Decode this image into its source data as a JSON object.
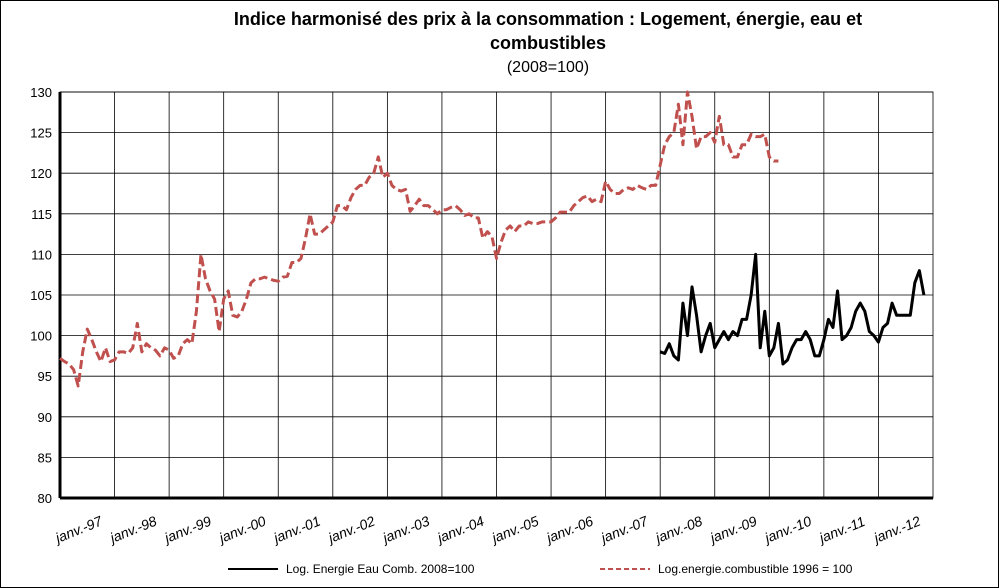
{
  "chart_data": {
    "type": "line",
    "title": [
      "Indice harmonisé des prix à la consommation : Logement, énergie, eau  et",
      "combustibles"
    ],
    "subtitle": "(2008=100)",
    "categories": [
      "janv.-97",
      null,
      null,
      null,
      null,
      null,
      null,
      null,
      null,
      null,
      null,
      null,
      "janv.-98",
      null,
      null,
      null,
      null,
      null,
      null,
      null,
      null,
      null,
      null,
      null,
      "janv.-99",
      null,
      null,
      null,
      null,
      null,
      null,
      null,
      null,
      null,
      null,
      null,
      "janv.-00",
      null,
      null,
      null,
      null,
      null,
      null,
      null,
      null,
      null,
      null,
      null,
      "janv.-01",
      null,
      null,
      null,
      null,
      null,
      null,
      null,
      null,
      null,
      null,
      null,
      "janv.-02",
      null,
      null,
      null,
      null,
      null,
      null,
      null,
      null,
      null,
      null,
      null,
      "janv.-03",
      null,
      null,
      null,
      null,
      null,
      null,
      null,
      null,
      null,
      null,
      null,
      "janv.-04",
      null,
      null,
      null,
      null,
      null,
      null,
      null,
      null,
      null,
      null,
      null,
      "janv.-05",
      null,
      null,
      null,
      null,
      null,
      null,
      null,
      null,
      null,
      null,
      null,
      "janv.-06",
      null,
      null,
      null,
      null,
      null,
      null,
      null,
      null,
      null,
      null,
      null,
      "janv.-07",
      null,
      null,
      null,
      null,
      null,
      null,
      null,
      null,
      null,
      null,
      null,
      "janv.-08",
      null,
      null,
      null,
      null,
      null,
      null,
      null,
      null,
      null,
      null,
      null,
      "janv.-09",
      null,
      null,
      null,
      null,
      null,
      null,
      null,
      null,
      null,
      null,
      null,
      "janv.-10",
      null,
      null,
      null,
      null,
      null,
      null,
      null,
      null,
      null,
      null,
      null,
      "janv.-11",
      null,
      null,
      null,
      null,
      null,
      null,
      null,
      null,
      null,
      null,
      null,
      "janv.-12",
      null,
      null,
      null,
      null,
      null,
      null,
      null,
      null,
      null,
      null,
      null
    ],
    "series": [
      {
        "name": "Log. Energie Eau Comb. 2008=100",
        "color": "#000000",
        "dash": false,
        "values": [
          null,
          null,
          null,
          null,
          null,
          null,
          null,
          null,
          null,
          null,
          null,
          null,
          null,
          null,
          null,
          null,
          null,
          null,
          null,
          null,
          null,
          null,
          null,
          null,
          null,
          null,
          null,
          null,
          null,
          null,
          null,
          null,
          null,
          null,
          null,
          null,
          null,
          null,
          null,
          null,
          null,
          null,
          null,
          null,
          null,
          null,
          null,
          null,
          null,
          null,
          null,
          null,
          null,
          null,
          null,
          null,
          null,
          null,
          null,
          null,
          null,
          null,
          null,
          null,
          null,
          null,
          null,
          null,
          null,
          null,
          null,
          null,
          null,
          null,
          null,
          null,
          null,
          null,
          null,
          null,
          null,
          null,
          null,
          null,
          null,
          null,
          null,
          null,
          null,
          null,
          null,
          null,
          null,
          null,
          null,
          null,
          null,
          null,
          null,
          null,
          null,
          null,
          null,
          null,
          null,
          null,
          null,
          null,
          null,
          null,
          null,
          null,
          null,
          null,
          null,
          null,
          null,
          null,
          null,
          null,
          null,
          null,
          null,
          null,
          null,
          null,
          null,
          null,
          null,
          null,
          null,
          null,
          98,
          97.8,
          99,
          97.5,
          97,
          104,
          100,
          106,
          102.5,
          98,
          100,
          101.5,
          98.5,
          99.5,
          100.5,
          99.5,
          100.5,
          100,
          102,
          102,
          105,
          110,
          98.5,
          103,
          97.5,
          98.5,
          101.5,
          96.5,
          97,
          98.5,
          99.5,
          99.5,
          100.5,
          99.5,
          97.5,
          97.5,
          99.5,
          102,
          101,
          105.5,
          99.5,
          100,
          101,
          103,
          104,
          103,
          100.5,
          100,
          99.2,
          101,
          101.5,
          104,
          102.5,
          102.5,
          102.5,
          102.5,
          106.5,
          108,
          105,
          null
        ]
      },
      {
        "name": "Log.energie.combustible 1996 = 100",
        "color": "#c0504d",
        "dash": true,
        "values": [
          97.2,
          96.8,
          96.5,
          95.8,
          93.8,
          98,
          100.8,
          99.5,
          98,
          96.8,
          98.5,
          96.8,
          97,
          98,
          98,
          97.8,
          98.5,
          101.5,
          98,
          99,
          98.5,
          98.2,
          97.5,
          98.5,
          98.2,
          97.2,
          97.5,
          99,
          99.5,
          99,
          103,
          110,
          107,
          105.5,
          104.5,
          100.5,
          104.5,
          105.5,
          102.5,
          102.3,
          103,
          104.5,
          106.5,
          107,
          107,
          107.2,
          107,
          106.8,
          106.7,
          107.2,
          107.3,
          109,
          109,
          109.5,
          112,
          115,
          112.5,
          112.5,
          113,
          113.5,
          114,
          116,
          116,
          115.5,
          117,
          118,
          118.5,
          118.5,
          119.5,
          120,
          122,
          119.5,
          120,
          118.5,
          118,
          117.8,
          118,
          115.3,
          116,
          116.8,
          116,
          116,
          115.5,
          115,
          115.5,
          115.5,
          115.8,
          116,
          115.5,
          114.8,
          115,
          114.5,
          114.5,
          112,
          112.8,
          112.2,
          109.5,
          111.5,
          113,
          113.5,
          112.8,
          113.5,
          113.5,
          114,
          113.8,
          113.8,
          114,
          114,
          114,
          114.5,
          115.2,
          115.2,
          115.2,
          116,
          116.5,
          117,
          117.2,
          116.5,
          116.8,
          116.5,
          119,
          118,
          117.5,
          117.5,
          118,
          118.2,
          118,
          118.5,
          118.2,
          118,
          118.5,
          118.5,
          121,
          123.5,
          124.5,
          125,
          128.5,
          123.5,
          130,
          127,
          123,
          124.5,
          124.5,
          125,
          123.8,
          127,
          123.5,
          123.5,
          122,
          122,
          123.5,
          123.5,
          124.8,
          124.5,
          124.5,
          124.8,
          122,
          121.5,
          121.5,
          null,
          null,
          null,
          null,
          null,
          null,
          null,
          null,
          null,
          null,
          null,
          null,
          null,
          null,
          null,
          null,
          null,
          null,
          null,
          null,
          null,
          null,
          null,
          null,
          null,
          null,
          null,
          null,
          null,
          null,
          null,
          null,
          null
        ]
      }
    ],
    "ylim": [
      80,
      130
    ],
    "yticks": [
      80,
      85,
      90,
      95,
      100,
      105,
      110,
      115,
      120,
      125,
      130
    ],
    "grid": true,
    "legend": "bottom"
  }
}
